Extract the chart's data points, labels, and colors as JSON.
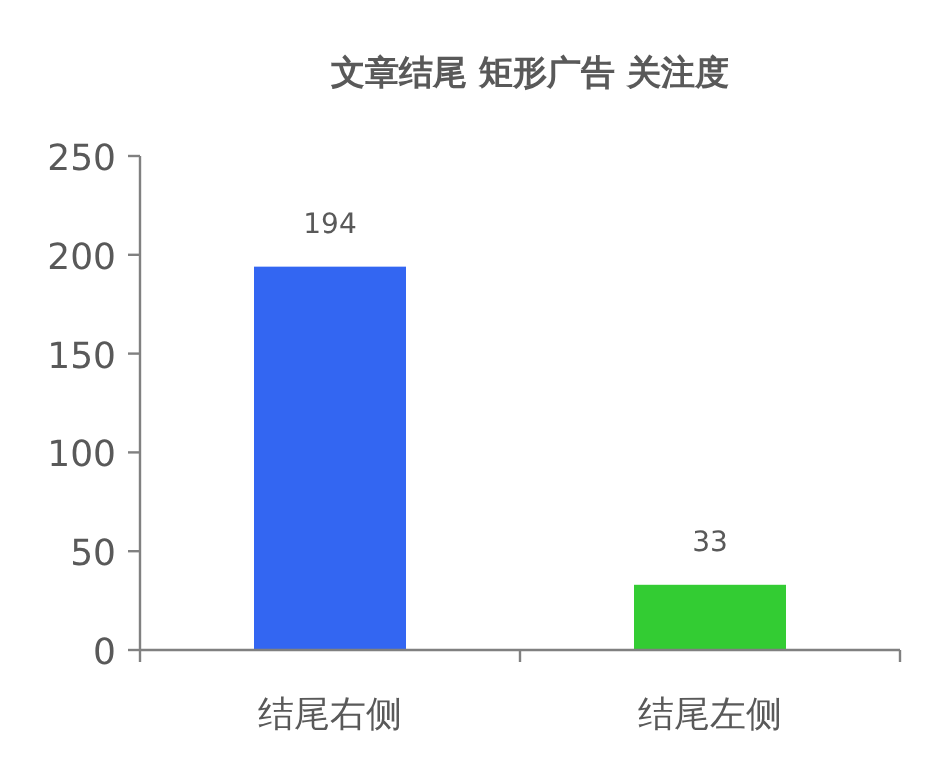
{
  "chart_data": {
    "type": "bar",
    "title": "文章结尾 矩形广告 关注度",
    "categories": [
      "结尾右侧",
      "结尾左侧"
    ],
    "values": [
      194,
      33
    ],
    "colors": [
      "#3366f2",
      "#33cc33"
    ],
    "ylim": [
      0,
      250
    ],
    "yticks": [
      0,
      50,
      100,
      150,
      200,
      250
    ],
    "data_labels": true,
    "grid": false
  }
}
